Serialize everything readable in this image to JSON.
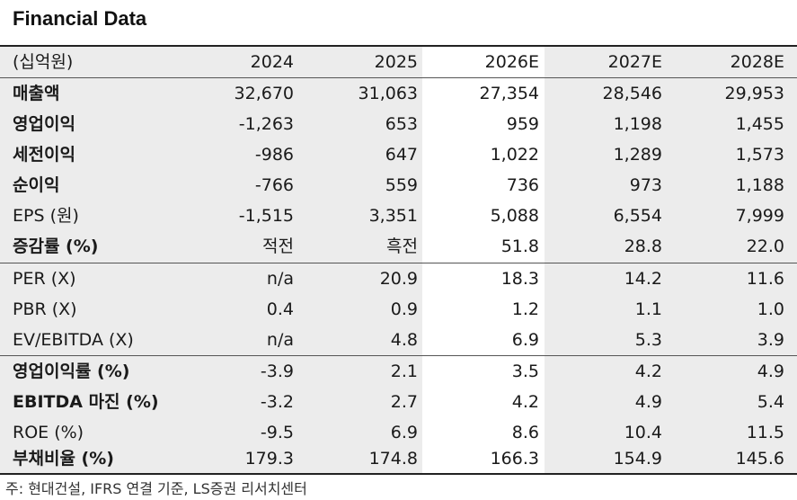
{
  "title": "Financial Data",
  "header": {
    "unit": "(십억원)",
    "years": [
      "2024",
      "2025",
      "2026E",
      "2027E",
      "2028E"
    ]
  },
  "rows": [
    {
      "label": "매출액",
      "values": [
        "32,670",
        "31,063",
        "27,354",
        "28,546",
        "29,953"
      ]
    },
    {
      "label": "영업이익",
      "values": [
        "-1,263",
        "653",
        "959",
        "1,198",
        "1,455"
      ]
    },
    {
      "label": "세전이익",
      "values": [
        "-986",
        "647",
        "1,022",
        "1,289",
        "1,573"
      ]
    },
    {
      "label": "순이익",
      "values": [
        "-766",
        "559",
        "736",
        "973",
        "1,188"
      ]
    },
    {
      "label": "EPS (원)",
      "values": [
        "-1,515",
        "3,351",
        "5,088",
        "6,554",
        "7,999"
      ]
    },
    {
      "label": "증감률 (%)",
      "values": [
        "적전",
        "흑전",
        "51.8",
        "28.8",
        "22.0"
      ]
    },
    {
      "label": "PER (X)",
      "values": [
        "n/a",
        "20.9",
        "18.3",
        "14.2",
        "11.6"
      ]
    },
    {
      "label": "PBR (X)",
      "values": [
        "0.4",
        "0.9",
        "1.2",
        "1.1",
        "1.0"
      ]
    },
    {
      "label": "EV/EBITDA (X)",
      "values": [
        "n/a",
        "4.8",
        "6.9",
        "5.3",
        "3.9"
      ]
    },
    {
      "label": "영업이익률 (%)",
      "values": [
        "-3.9",
        "2.1",
        "3.5",
        "4.2",
        "4.9"
      ]
    },
    {
      "label": "EBITDA 마진 (%)",
      "values": [
        "-3.2",
        "2.7",
        "4.2",
        "4.9",
        "5.4"
      ]
    },
    {
      "label": "ROE (%)",
      "values": [
        "-9.5",
        "6.9",
        "8.6",
        "10.4",
        "11.5"
      ]
    },
    {
      "label": "부채비율 (%)",
      "values": [
        "179.3",
        "174.8",
        "166.3",
        "154.9",
        "145.6"
      ]
    }
  ],
  "note": "주: 현대건설, IFRS 연결 기준, LS증권 리서치센터"
}
